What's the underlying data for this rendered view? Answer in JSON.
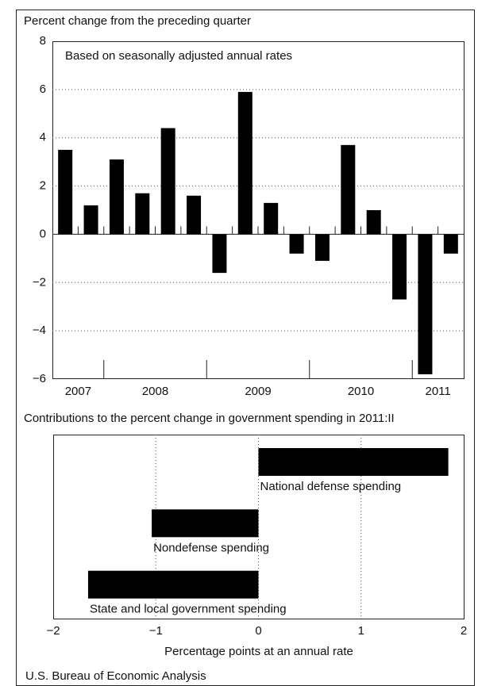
{
  "chart_data": [
    {
      "type": "bar",
      "title": "Percent change from the preceding quarter",
      "annotation": "Based on seasonally adjusted annual rates",
      "categories": [
        null,
        null,
        null,
        null,
        null,
        null,
        null,
        null,
        null,
        null,
        null,
        null,
        null,
        null,
        null,
        null
      ],
      "groups": [
        {
          "label": "2007",
          "size": 2
        },
        {
          "label": "2008",
          "size": 4
        },
        {
          "label": "2009",
          "size": 4
        },
        {
          "label": "2010",
          "size": 4
        },
        {
          "label": "2011",
          "size": 2
        }
      ],
      "values": [
        3.5,
        1.2,
        3.1,
        1.7,
        4.4,
        1.6,
        -1.6,
        5.9,
        1.3,
        -0.8,
        -1.1,
        3.7,
        1.0,
        -2.7,
        -5.8,
        -0.8
      ],
      "color": "#000000",
      "ylim": [
        -6,
        8
      ],
      "yticks": [
        {
          "value": -6,
          "label": "−6"
        },
        {
          "value": -4,
          "label": "−4"
        },
        {
          "value": -2,
          "label": "−2"
        },
        0,
        2,
        4,
        6,
        8
      ],
      "grid": true
    },
    {
      "type": "barh",
      "title": "Contributions to the percent change in government spending in 2011:II",
      "categories": [
        "National defense spending",
        "Nondefense spending",
        "State and local government spending"
      ],
      "values": [
        1.85,
        -1.04,
        -1.66
      ],
      "color": "#000000",
      "xlim": [
        -2,
        2
      ],
      "xticks": [
        {
          "value": -2,
          "label": "−2"
        },
        {
          "value": -1,
          "label": "−1"
        },
        0,
        1,
        2
      ],
      "xlabel": "Percentage points at an annual rate",
      "grid": true
    }
  ],
  "source": "U.S. Bureau of Economic Analysis"
}
